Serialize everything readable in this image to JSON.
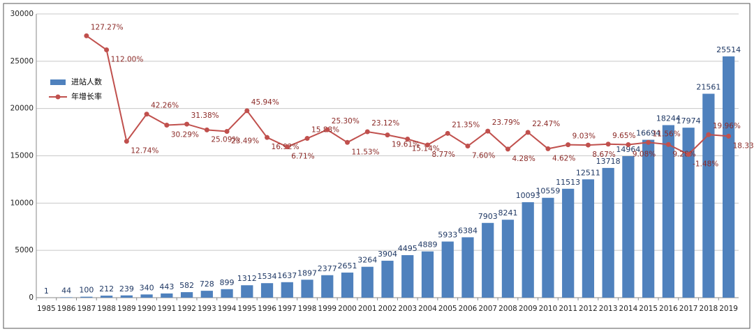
{
  "chart_data": {
    "type": "bar",
    "categories": [
      "1985",
      "1986",
      "1987",
      "1988",
      "1989",
      "1990",
      "1991",
      "1992",
      "1993",
      "1994",
      "1995",
      "1996",
      "1997",
      "1998",
      "1999",
      "2000",
      "2001",
      "2002",
      "2003",
      "2004",
      "2005",
      "2006",
      "2007",
      "2008",
      "2009",
      "2010",
      "2011",
      "2012",
      "2013",
      "2014",
      "2015",
      "2016",
      "2017",
      "2018",
      "2019"
    ],
    "series": [
      {
        "name": "进站人数",
        "type": "bar",
        "color": "#4f81bd",
        "values": [
          1,
          44,
          100,
          212,
          239,
          340,
          443,
          582,
          728,
          899,
          1312,
          1534,
          1637,
          1897,
          2377,
          2651,
          3264,
          3904,
          4495,
          4889,
          5933,
          6384,
          7903,
          8241,
          10093,
          10559,
          11513,
          12511,
          13718,
          14964,
          16694,
          18244,
          17974,
          21561,
          25514
        ]
      },
      {
        "name": "年增长率",
        "type": "line",
        "axis": "y2",
        "color": "#c0504d",
        "values": [
          null,
          null,
          127.27,
          112.0,
          12.74,
          42.26,
          30.29,
          31.38,
          25.09,
          23.49,
          45.94,
          16.92,
          6.71,
          15.88,
          25.3,
          11.53,
          23.12,
          19.61,
          15.14,
          8.77,
          21.35,
          7.6,
          23.79,
          4.28,
          22.47,
          4.62,
          9.03,
          8.67,
          9.65,
          9.08,
          11.56,
          9.28,
          -1.48,
          19.96,
          18.33
        ],
        "value_labels": [
          null,
          null,
          "127.27%",
          "112.00%",
          "12.74%",
          "42.26%",
          "30.29%",
          "31.38%",
          "25.09%",
          "23.49%",
          "45.94%",
          "16.92%",
          "6.71%",
          "15.88%",
          "25.30%",
          "11.53%",
          "23.12%",
          "19.61%",
          "15.14%",
          "8.77%",
          "21.35%",
          "7.60%",
          "23.79%",
          "4.28%",
          "22.47%",
          "4.62%",
          "9.03%",
          "8.67%",
          "9.65%",
          "9.08%",
          "11.56%",
          "9.28%",
          "-1.48%",
          "19.96%",
          "18.33%"
        ]
      }
    ],
    "ylim": [
      0,
      30000
    ],
    "yticks": [
      0,
      5000,
      10000,
      15000,
      20000,
      25000,
      30000
    ],
    "y2lim": [
      -157,
      151
    ],
    "grid": true,
    "legend": "upper left"
  }
}
